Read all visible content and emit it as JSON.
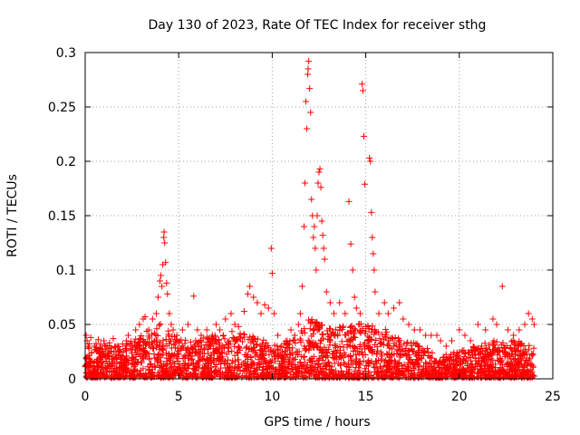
{
  "chart_data": {
    "type": "scatter",
    "title": "Day 130 of 2023, Rate Of TEC Index for receiver sthg",
    "xlabel": "GPS time / hours",
    "ylabel": "ROTI / TECUs",
    "xlim": [
      0,
      25
    ],
    "ylim": [
      0,
      0.3
    ],
    "xticks": [
      0,
      5,
      10,
      15,
      20,
      25
    ],
    "yticks": [
      0,
      0.05,
      0.1,
      0.15,
      0.2,
      0.25,
      0.3
    ],
    "xtick_labels": [
      "0",
      "5",
      "10",
      "15",
      "20",
      "25"
    ],
    "ytick_labels": [
      "0",
      "0.05",
      "0.1",
      "0.15",
      "0.2",
      "0.25",
      "0.3"
    ],
    "grid": true,
    "marker": "+",
    "color": "#ff0000",
    "series": [
      {
        "name": "ROTI",
        "points": [
          [
            0.05,
            0.04
          ],
          [
            0.1,
            0.035
          ],
          [
            0.15,
            0.03
          ],
          [
            0.2,
            0.028
          ],
          [
            0.3,
            0.038
          ],
          [
            0.5,
            0.03
          ],
          [
            0.7,
            0.036
          ],
          [
            0.8,
            0.025
          ],
          [
            1.0,
            0.035
          ],
          [
            1.1,
            0.03
          ],
          [
            1.3,
            0.033
          ],
          [
            1.5,
            0.037
          ],
          [
            1.7,
            0.03
          ],
          [
            2.0,
            0.032
          ],
          [
            2.2,
            0.035
          ],
          [
            2.3,
            0.04
          ],
          [
            2.5,
            0.03
          ],
          [
            2.7,
            0.045
          ],
          [
            2.9,
            0.05
          ],
          [
            3.1,
            0.055
          ],
          [
            3.2,
            0.057
          ],
          [
            3.4,
            0.045
          ],
          [
            3.6,
            0.055
          ],
          [
            3.8,
            0.06
          ],
          [
            3.9,
            0.075
          ],
          [
            4.0,
            0.09
          ],
          [
            4.05,
            0.095
          ],
          [
            4.1,
            0.085
          ],
          [
            4.15,
            0.105
          ],
          [
            4.2,
            0.13
          ],
          [
            4.22,
            0.135
          ],
          [
            4.25,
            0.125
          ],
          [
            4.3,
            0.107
          ],
          [
            4.35,
            0.088
          ],
          [
            4.4,
            0.078
          ],
          [
            4.5,
            0.06
          ],
          [
            4.6,
            0.05
          ],
          [
            4.7,
            0.045
          ],
          [
            4.9,
            0.04
          ],
          [
            5.2,
            0.045
          ],
          [
            5.5,
            0.05
          ],
          [
            5.8,
            0.076
          ],
          [
            6.0,
            0.045
          ],
          [
            6.2,
            0.04
          ],
          [
            6.5,
            0.045
          ],
          [
            6.8,
            0.04
          ],
          [
            7.0,
            0.05
          ],
          [
            7.2,
            0.045
          ],
          [
            7.5,
            0.055
          ],
          [
            7.8,
            0.06
          ],
          [
            8.0,
            0.05
          ],
          [
            8.2,
            0.048
          ],
          [
            8.5,
            0.062
          ],
          [
            8.7,
            0.078
          ],
          [
            8.8,
            0.085
          ],
          [
            9.0,
            0.075
          ],
          [
            9.2,
            0.07
          ],
          [
            9.4,
            0.06
          ],
          [
            9.6,
            0.068
          ],
          [
            9.8,
            0.065
          ],
          [
            9.95,
            0.12
          ],
          [
            10.0,
            0.097
          ],
          [
            10.1,
            0.06
          ],
          [
            10.3,
            0.04
          ],
          [
            10.5,
            0.03
          ],
          [
            10.8,
            0.035
          ],
          [
            11.0,
            0.045
          ],
          [
            11.2,
            0.04
          ],
          [
            11.4,
            0.05
          ],
          [
            11.5,
            0.06
          ],
          [
            11.6,
            0.085
          ],
          [
            11.7,
            0.14
          ],
          [
            11.75,
            0.18
          ],
          [
            11.8,
            0.255
          ],
          [
            11.85,
            0.23
          ],
          [
            11.9,
            0.28
          ],
          [
            11.92,
            0.285
          ],
          [
            11.95,
            0.292
          ],
          [
            12.0,
            0.267
          ],
          [
            12.05,
            0.245
          ],
          [
            12.1,
            0.165
          ],
          [
            12.15,
            0.15
          ],
          [
            12.2,
            0.13
          ],
          [
            12.25,
            0.14
          ],
          [
            12.3,
            0.12
          ],
          [
            12.35,
            0.1
          ],
          [
            12.4,
            0.15
          ],
          [
            12.45,
            0.18
          ],
          [
            12.5,
            0.19
          ],
          [
            12.55,
            0.193
          ],
          [
            12.6,
            0.176
          ],
          [
            12.65,
            0.145
          ],
          [
            12.7,
            0.132
          ],
          [
            12.75,
            0.12
          ],
          [
            12.8,
            0.11
          ],
          [
            12.9,
            0.08
          ],
          [
            13.1,
            0.07
          ],
          [
            13.3,
            0.06
          ],
          [
            13.6,
            0.07
          ],
          [
            13.9,
            0.06
          ],
          [
            14.1,
            0.163
          ],
          [
            14.2,
            0.124
          ],
          [
            14.3,
            0.1
          ],
          [
            14.4,
            0.075
          ],
          [
            14.5,
            0.065
          ],
          [
            14.7,
            0.06
          ],
          [
            14.8,
            0.271
          ],
          [
            14.85,
            0.265
          ],
          [
            14.9,
            0.223
          ],
          [
            14.95,
            0.179
          ],
          [
            15.2,
            0.203
          ],
          [
            15.25,
            0.2
          ],
          [
            15.3,
            0.153
          ],
          [
            15.35,
            0.13
          ],
          [
            15.4,
            0.115
          ],
          [
            15.45,
            0.1
          ],
          [
            15.5,
            0.08
          ],
          [
            15.7,
            0.06
          ],
          [
            16.0,
            0.07
          ],
          [
            16.2,
            0.06
          ],
          [
            16.5,
            0.065
          ],
          [
            16.8,
            0.07
          ],
          [
            17.0,
            0.055
          ],
          [
            17.3,
            0.05
          ],
          [
            17.6,
            0.045
          ],
          [
            17.9,
            0.045
          ],
          [
            18.2,
            0.04
          ],
          [
            18.5,
            0.04
          ],
          [
            18.8,
            0.04
          ],
          [
            19.0,
            0.035
          ],
          [
            19.3,
            0.03
          ],
          [
            19.6,
            0.035
          ],
          [
            20.0,
            0.045
          ],
          [
            20.3,
            0.04
          ],
          [
            20.6,
            0.035
          ],
          [
            21.0,
            0.05
          ],
          [
            21.4,
            0.045
          ],
          [
            21.8,
            0.055
          ],
          [
            22.0,
            0.05
          ],
          [
            22.3,
            0.085
          ],
          [
            22.6,
            0.045
          ],
          [
            22.9,
            0.04
          ],
          [
            23.2,
            0.045
          ],
          [
            23.5,
            0.05
          ],
          [
            23.7,
            0.06
          ],
          [
            23.9,
            0.055
          ],
          [
            24.0,
            0.05
          ]
        ],
        "background_band": {
          "type": "dense-noise",
          "x_range": [
            0,
            24
          ],
          "baseline_max": 0.03,
          "envelope": [
            [
              0,
              0.035
            ],
            [
              1,
              0.03
            ],
            [
              2,
              0.03
            ],
            [
              3,
              0.04
            ],
            [
              4,
              0.05
            ],
            [
              5,
              0.035
            ],
            [
              6,
              0.035
            ],
            [
              7,
              0.04
            ],
            [
              8,
              0.045
            ],
            [
              9,
              0.04
            ],
            [
              10,
              0.03
            ],
            [
              11,
              0.035
            ],
            [
              12,
              0.055
            ],
            [
              13,
              0.045
            ],
            [
              14,
              0.05
            ],
            [
              15,
              0.05
            ],
            [
              16,
              0.045
            ],
            [
              17,
              0.035
            ],
            [
              18,
              0.03
            ],
            [
              19,
              0.02
            ],
            [
              20,
              0.025
            ],
            [
              21,
              0.03
            ],
            [
              22,
              0.035
            ],
            [
              23,
              0.035
            ],
            [
              24,
              0.03
            ]
          ]
        }
      }
    ]
  }
}
